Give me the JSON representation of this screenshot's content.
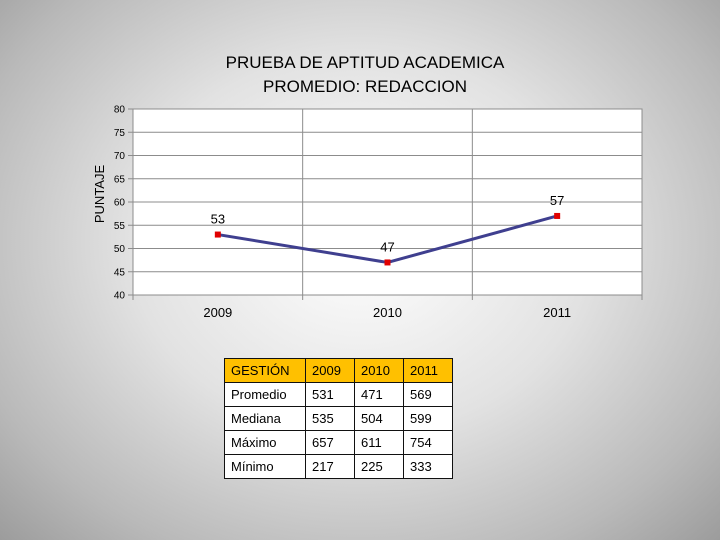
{
  "chart_data": {
    "type": "line",
    "title_lines": [
      "PRUEBA DE APTITUD ACADEMICA",
      "PROMEDIO: REDACCION"
    ],
    "ylabel": "PUNTAJE",
    "xlabel": "",
    "ylim": [
      40,
      80
    ],
    "yticks": [
      "40",
      "45",
      "50",
      "55",
      "60",
      "65",
      "70",
      "75",
      "80"
    ],
    "grid": true,
    "legend": "none",
    "categories": [
      "2009",
      "2010",
      "2011"
    ],
    "series": [
      {
        "values": [
          53,
          47,
          57
        ],
        "color": "#3f3f8f",
        "marker_color": "#e00000"
      }
    ],
    "data_labels": [
      "53",
      "47",
      "57"
    ]
  },
  "table": {
    "headers": [
      "GESTIÓN",
      "2009",
      "2010",
      "2011"
    ],
    "header_color": "#ffc000",
    "rows": [
      [
        "Promedio",
        "531",
        "471",
        "569"
      ],
      [
        "Mediana",
        "535",
        "504",
        "599"
      ],
      [
        "Máximo",
        "657",
        "611",
        "754"
      ],
      [
        "Mínimo",
        "217",
        "225",
        "333"
      ]
    ]
  }
}
